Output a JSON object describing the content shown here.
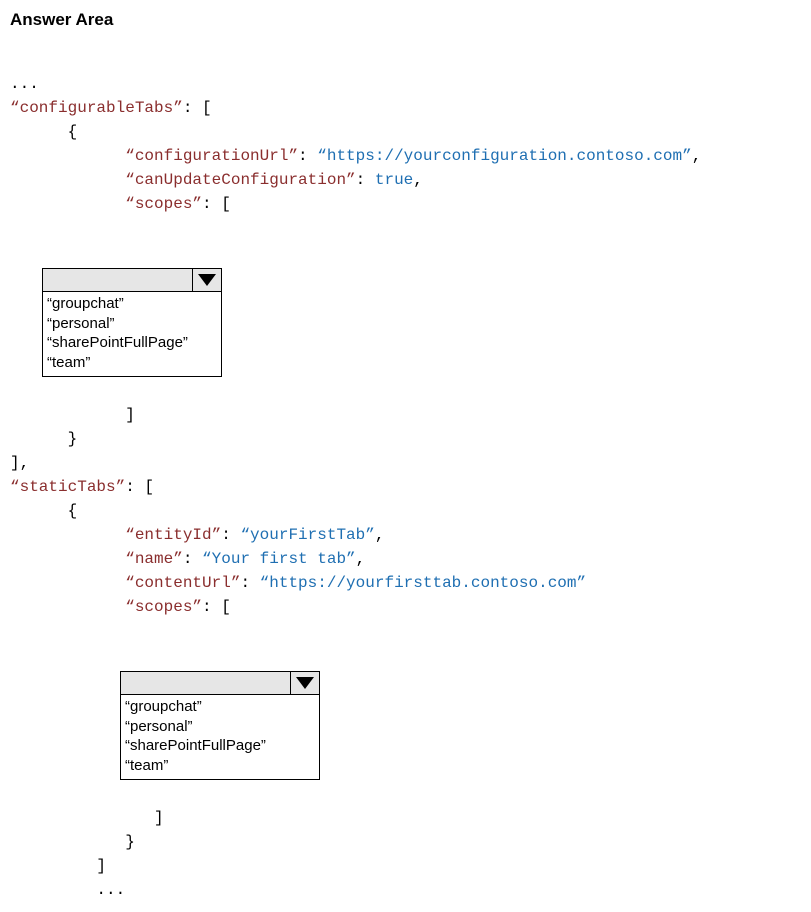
{
  "heading": "Answer Area",
  "ellipsis": "...",
  "keys": {
    "configurableTabs": "“configurableTabs”",
    "configurationUrl": "“configurationUrl”",
    "canUpdateConfiguration": "“canUpdateConfiguration”",
    "scopes": "“scopes”",
    "staticTabs": "“staticTabs”",
    "entityId": "“entityId”",
    "name": "“name”",
    "contentUrl": "“contentUrl”"
  },
  "values": {
    "configurationUrl": "“https://yourconfiguration.contoso.com”",
    "canUpdateConfiguration": "true",
    "entityId": "“yourFirstTab”",
    "name": "“Your first tab”",
    "contentUrl": "“https://yourfirsttab.contoso.com”"
  },
  "dropdown1": {
    "selected": "",
    "options": [
      "“groupchat”",
      "“personal”",
      "“sharePointFullPage”",
      "“team”"
    ]
  },
  "dropdown2": {
    "selected": "",
    "options": [
      "“groupchat”",
      "“personal”",
      "“sharePointFullPage”",
      "“team”"
    ]
  },
  "punct": {
    "colon_sp": ": ",
    "colon_open_bracket": ": [",
    "open_brace": "{",
    "close_brace": "}",
    "close_brace_comma": "],",
    "close_bracket": "]",
    "comma": ","
  }
}
